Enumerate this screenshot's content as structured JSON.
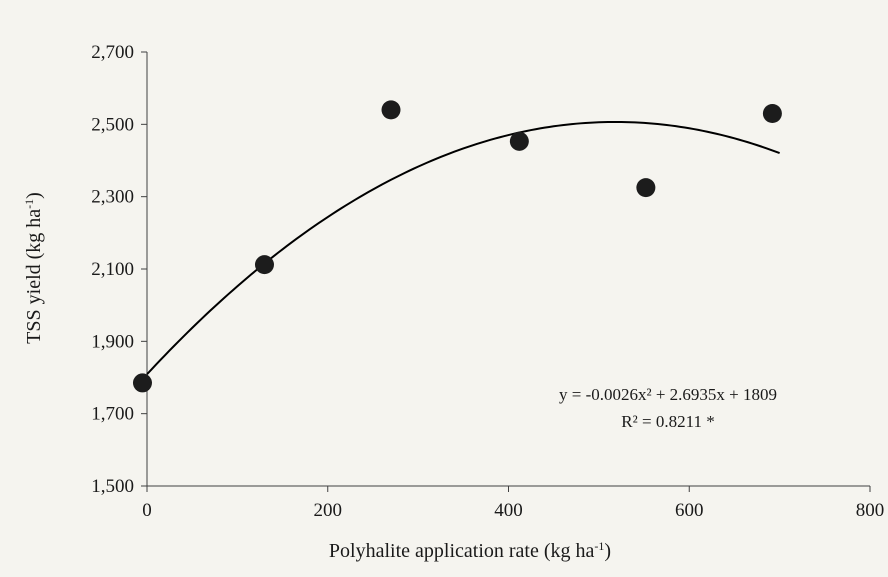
{
  "chart_data": {
    "type": "scatter",
    "xlabel": "Polyhalite application rate (kg ha",
    "xlabel_sup": "-1",
    "xlabel_end": ")",
    "ylabel": "TSS yield (kg ha",
    "ylabel_sup": "-1",
    "ylabel_end": ")",
    "xlim": [
      0,
      800
    ],
    "ylim": [
      1500,
      2700
    ],
    "x_ticks": [
      0,
      200,
      400,
      600,
      800
    ],
    "x_tick_labels": [
      "0",
      "200",
      "400",
      "600",
      "800"
    ],
    "y_ticks": [
      1500,
      1700,
      1900,
      2100,
      2300,
      2500,
      2700
    ],
    "y_tick_labels": [
      "1,500",
      "1,700",
      "1,900",
      "2,100",
      "2,300",
      "2,500",
      "2,700"
    ],
    "grid": false,
    "series": [
      {
        "points": [
          {
            "x": -5,
            "y": 1785
          },
          {
            "x": 130,
            "y": 2112
          },
          {
            "x": 270,
            "y": 2540
          },
          {
            "x": 412,
            "y": 2453
          },
          {
            "x": 552,
            "y": 2325
          },
          {
            "x": 692,
            "y": 2530
          }
        ]
      }
    ],
    "trendline": {
      "type": "polynomial",
      "a": -0.0026,
      "b": 2.6935,
      "c": 1809,
      "x_range": [
        0,
        700
      ]
    },
    "annotations": {
      "equation": "y = -0.0026x² + 2.6935x + 1809",
      "r_squared": "R² = 0.8211 *"
    },
    "colors": {
      "background": "#f5f4ef",
      "marker": "#1c1c1c",
      "line": "#000000"
    }
  }
}
